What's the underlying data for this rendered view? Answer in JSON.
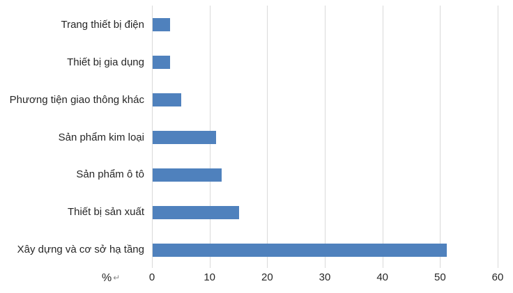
{
  "chart_data": {
    "type": "bar",
    "orientation": "horizontal",
    "title": "",
    "categories": [
      "Trang thiết bị điện",
      "Thiết bị gia dụng",
      "Phương tiện giao thông khác",
      "Sản phẩm kim loại",
      "Sản phẩm ô tô",
      "Thiết bị sản xuất",
      "Xây dựng và cơ sở hạ tầng"
    ],
    "values": [
      3,
      3,
      5,
      11,
      12,
      15,
      51
    ],
    "xlabel": "%",
    "line_break_mark": "↵",
    "x_ticks": [
      "0",
      "10",
      "20",
      "30",
      "40",
      "50",
      "60"
    ],
    "xlim": [
      0,
      60
    ],
    "grid": true,
    "legend": "none",
    "colors": {
      "bar": "#4F81BD",
      "gridline": "#D9D9D9",
      "text": "#262626",
      "line_break_mark": "#8C8C8C"
    }
  }
}
